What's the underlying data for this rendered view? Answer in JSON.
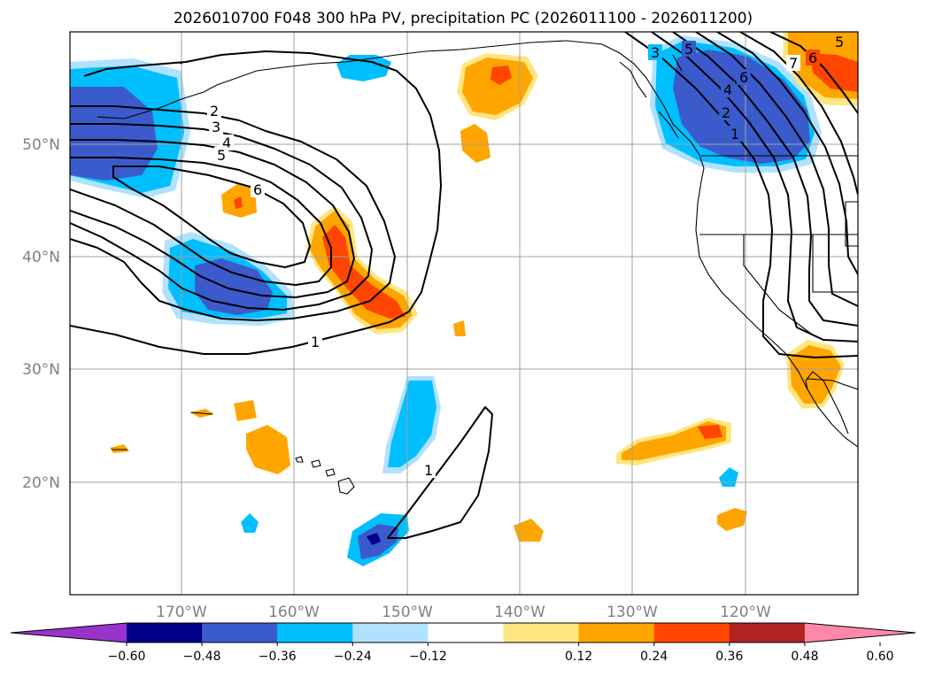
{
  "title": "2026010700 F048 300 hPa PV, precipitation PC (2026011100 - 2026011200)",
  "axes": {
    "lat_labels": [
      "20°N",
      "30°N",
      "40°N",
      "50°N"
    ],
    "lon_labels": [
      "170°W",
      "160°W",
      "150°W",
      "140°W",
      "130°W",
      "120°W"
    ]
  },
  "colorbar": {
    "labels": [
      "−0.60",
      "−0.48",
      "−0.36",
      "−0.24",
      "−0.12",
      "0.12",
      "0.24",
      "0.36",
      "0.48",
      "0.60"
    ],
    "colors": [
      "#9933cc",
      "#00008b",
      "#3b5bcc",
      "#00bfff",
      "#b0e2ff",
      "#ffffff",
      "#ffe680",
      "#ffa500",
      "#ff4500",
      "#b22222",
      "#ff88aa"
    ]
  },
  "contour_labels": [
    "1",
    "1",
    "2",
    "3",
    "4",
    "5",
    "6",
    "1",
    "2",
    "3",
    "4",
    "5",
    "6",
    "7",
    "6",
    "5"
  ],
  "colors": {
    "neg_light": "#b0e2ff",
    "neg_mid": "#00bfff",
    "neg_strong": "#3b5bcc",
    "neg_max": "#00008b",
    "pos_light": "#ffe680",
    "pos_mid": "#ffa500",
    "pos_strong": "#ff4500",
    "pos_max": "#b22222"
  }
}
